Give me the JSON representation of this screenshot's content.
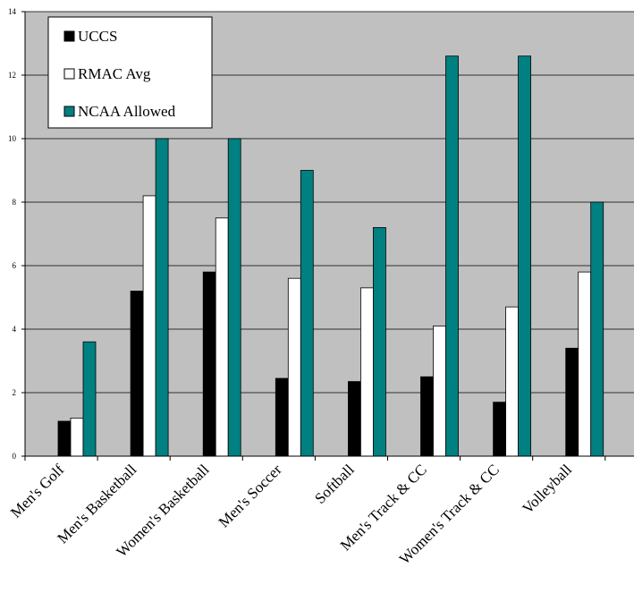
{
  "chart_data": {
    "type": "bar",
    "title": "",
    "xlabel": "",
    "ylabel": "",
    "ylim": [
      0,
      14
    ],
    "yticks": [
      0,
      2,
      4,
      6,
      8,
      10,
      12,
      14
    ],
    "grid": true,
    "legend_position": "top-left",
    "categories": [
      "Men's Golf",
      "Men's Basketball",
      "Women's Basketball",
      "Men's Soccer",
      "Softball",
      "Men's Track & CC",
      "Women's Track & CC",
      "Volleyball"
    ],
    "series": [
      {
        "name": "UCCS",
        "values": [
          1.1,
          5.2,
          5.8,
          2.45,
          2.35,
          2.5,
          1.7,
          3.4
        ],
        "color": "#000000"
      },
      {
        "name": "RMAC Avg",
        "values": [
          1.2,
          8.2,
          7.5,
          5.6,
          5.3,
          4.1,
          4.7,
          5.8
        ],
        "color": "#ffffff"
      },
      {
        "name": "NCAA Allowed",
        "values": [
          3.6,
          10,
          10,
          9,
          7.2,
          12.6,
          12.6,
          8
        ],
        "color": "#008080"
      }
    ],
    "plot_background": "#c0c0c0"
  }
}
